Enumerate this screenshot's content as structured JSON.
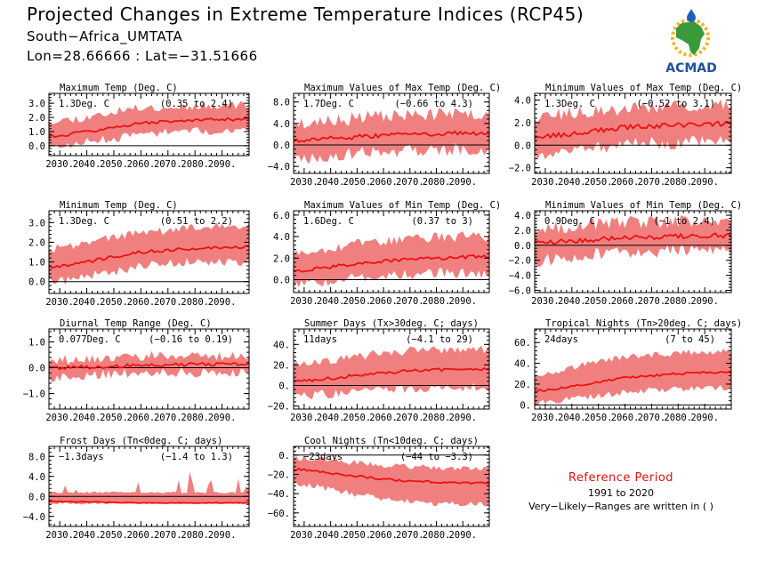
{
  "header": {
    "title": "Projected Changes in Extreme Temperature Indices (RCP45)",
    "subtitle_location": "South−Africa_UMTATA",
    "subtitle_coords": "Lon=28.66666 : Lat=−31.51666"
  },
  "logo": {
    "text": "ACMAD",
    "colors": {
      "africa": "#3a9a3a",
      "rays": "#f3b31a",
      "drop": "#1f63b5",
      "text": "#1f4fa3"
    }
  },
  "reference": {
    "heading": "Reference Period",
    "period": "1991 to 2020",
    "note": "Very−Likely−Ranges are written in ( )"
  },
  "style": {
    "band_color": "#f08080",
    "line_color": "#ee1111",
    "zero_line_color": "#000000"
  },
  "chart_data": [
    {
      "type": "area",
      "title": "Maximum Temp (Deg. C)",
      "mean_label": "1.3Deg. C",
      "range_label": "(0.35 to 2.4)",
      "x": [
        2030,
        2040,
        2050,
        2060,
        2070,
        2080,
        2090
      ],
      "x_tick_labels": [
        "2030.",
        "2040.",
        "2050.",
        "2060.",
        "2070.",
        "2080.",
        "2090."
      ],
      "xlim": [
        2026,
        2100
      ],
      "ylim": [
        -0.7,
        3.7
      ],
      "yticks": [
        0,
        1,
        2,
        3
      ],
      "ytick_labels": [
        "0.0",
        "1.0",
        "2.0",
        "3.0"
      ],
      "median": [
        0.7,
        1.0,
        1.3,
        1.6,
        1.7,
        1.8,
        1.85
      ],
      "lower": [
        -0.1,
        0.3,
        0.5,
        0.8,
        1.0,
        1.0,
        1.1
      ],
      "upper": [
        1.8,
        2.0,
        2.4,
        2.7,
        2.7,
        2.8,
        2.9
      ],
      "seed": 11,
      "noise": 0.6
    },
    {
      "type": "area",
      "title": "Maximum Values of Max Temp (Deg. C)",
      "mean_label": "1.7Deg. C",
      "range_label": "(−0.66 to 4.3)",
      "x": [
        2030,
        2040,
        2050,
        2060,
        2070,
        2080,
        2090
      ],
      "x_tick_labels": [
        "2030.",
        "2040.",
        "2050.",
        "2060.",
        "2070.",
        "2080.",
        "2090."
      ],
      "xlim": [
        2026,
        2100
      ],
      "ylim": [
        -5.3,
        9.6
      ],
      "yticks": [
        -4,
        0,
        4,
        8
      ],
      "ytick_labels": [
        "−4.0",
        "0.0",
        "4.0",
        "8.0"
      ],
      "median": [
        0.8,
        1.2,
        1.5,
        1.8,
        2.0,
        2.1,
        2.2
      ],
      "lower": [
        -2.5,
        -2.0,
        -1.5,
        -1.2,
        -1.0,
        -1.0,
        -0.8
      ],
      "upper": [
        4.0,
        4.5,
        5.0,
        5.5,
        5.5,
        5.7,
        5.8
      ],
      "seed": 23,
      "noise": 2.4
    },
    {
      "type": "area",
      "title": "Minimum Values of Max Temp (Deg. C)",
      "mean_label": "1.3Deg. C",
      "range_label": "(−0.52 to 3.1)",
      "x": [
        2030,
        2040,
        2050,
        2060,
        2070,
        2080,
        2090
      ],
      "x_tick_labels": [
        "2030.",
        "2040.",
        "2050.",
        "2060.",
        "2070.",
        "2080.",
        "2090."
      ],
      "xlim": [
        2026,
        2100
      ],
      "ylim": [
        -2.5,
        4.6
      ],
      "yticks": [
        -2,
        0,
        2,
        4
      ],
      "ytick_labels": [
        "−2.0",
        "0.0",
        "2.0",
        "4.0"
      ],
      "median": [
        0.8,
        1.0,
        1.3,
        1.6,
        1.7,
        1.8,
        1.9
      ],
      "lower": [
        -0.8,
        -0.5,
        -0.2,
        0.0,
        0.2,
        0.2,
        0.3
      ],
      "upper": [
        2.6,
        2.8,
        3.0,
        3.2,
        3.4,
        3.4,
        3.5
      ],
      "seed": 37,
      "noise": 1.2
    },
    {
      "type": "area",
      "title": "Minimum Temp (Deg. C)",
      "mean_label": "1.3Deg. C",
      "range_label": "(0.51 to 2.2)",
      "x": [
        2030,
        2040,
        2050,
        2060,
        2070,
        2080,
        2090
      ],
      "x_tick_labels": [
        "2030.",
        "2040.",
        "2050.",
        "2060.",
        "2070.",
        "2080.",
        "2090."
      ],
      "xlim": [
        2026,
        2100
      ],
      "ylim": [
        -0.6,
        3.6
      ],
      "yticks": [
        0,
        1,
        2,
        3
      ],
      "ytick_labels": [
        "0.0",
        "1.0",
        "2.0",
        "3.0"
      ],
      "median": [
        0.75,
        1.0,
        1.25,
        1.5,
        1.6,
        1.7,
        1.75
      ],
      "lower": [
        0.0,
        0.3,
        0.5,
        0.8,
        0.9,
        1.0,
        1.0
      ],
      "upper": [
        1.7,
        2.0,
        2.3,
        2.5,
        2.6,
        2.7,
        2.8
      ],
      "seed": 41,
      "noise": 0.45
    },
    {
      "type": "area",
      "title": "Maximum Values of Min Temp (Deg. C)",
      "mean_label": "1.6Deg. C",
      "range_label": "(0.37 to 3)",
      "x": [
        2030,
        2040,
        2050,
        2060,
        2070,
        2080,
        2090
      ],
      "x_tick_labels": [
        "2030.",
        "2040.",
        "2050.",
        "2060.",
        "2070.",
        "2080.",
        "2090."
      ],
      "xlim": [
        2026,
        2100
      ],
      "ylim": [
        -1.2,
        6.4
      ],
      "yticks": [
        0,
        2,
        4,
        6
      ],
      "ytick_labels": [
        "0.0",
        "2.0",
        "4.0",
        "6.0"
      ],
      "median": [
        0.9,
        1.2,
        1.5,
        1.7,
        1.9,
        2.0,
        2.1
      ],
      "lower": [
        -0.4,
        -0.1,
        0.2,
        0.4,
        0.5,
        0.6,
        0.6
      ],
      "upper": [
        2.6,
        3.0,
        3.3,
        3.6,
        3.8,
        3.9,
        4.0
      ],
      "seed": 53,
      "noise": 1.0
    },
    {
      "type": "area",
      "title": "Minimum Values of Min Temp (Deg. C)",
      "mean_label": "0.9Deg. C",
      "range_label": "(−1 to 2.4)",
      "x": [
        2030,
        2040,
        2050,
        2060,
        2070,
        2080,
        2090
      ],
      "x_tick_labels": [
        "2030.",
        "2040.",
        "2050.",
        "2060.",
        "2070.",
        "2080.",
        "2090."
      ],
      "xlim": [
        2026,
        2100
      ],
      "ylim": [
        -6.3,
        4.6
      ],
      "yticks": [
        -6,
        -4,
        -2,
        0,
        2,
        4
      ],
      "ytick_labels": [
        "−6.0",
        "−4.0",
        "−2.0",
        "0.0",
        "2.0",
        "4.0"
      ],
      "median": [
        0.4,
        0.6,
        0.8,
        1.0,
        1.1,
        1.2,
        1.3
      ],
      "lower": [
        -2.0,
        -1.6,
        -1.2,
        -1.0,
        -0.8,
        -0.8,
        -0.6
      ],
      "upper": [
        2.4,
        2.6,
        2.8,
        3.0,
        3.1,
        3.2,
        3.2
      ],
      "seed": 67,
      "noise": 1.8
    },
    {
      "type": "area",
      "title": "Diurnal Temp Range (Deg. C)",
      "mean_label": "0.077Deg. C",
      "range_label": "(−0.16 to 0.19)",
      "x": [
        2030,
        2040,
        2050,
        2060,
        2070,
        2080,
        2090
      ],
      "x_tick_labels": [
        "2030.",
        "2040.",
        "2050.",
        "2060.",
        "2070.",
        "2080.",
        "2090."
      ],
      "xlim": [
        2026,
        2100
      ],
      "ylim": [
        -1.6,
        1.5
      ],
      "yticks": [
        -1,
        0,
        1
      ],
      "ytick_labels": [
        "−1.0",
        "0.0",
        "1.0"
      ],
      "median": [
        0.0,
        0.02,
        0.05,
        0.1,
        0.12,
        0.12,
        0.15
      ],
      "lower": [
        -0.35,
        -0.3,
        -0.25,
        -0.2,
        -0.18,
        -0.18,
        -0.15
      ],
      "upper": [
        0.3,
        0.35,
        0.4,
        0.45,
        0.45,
        0.45,
        0.45
      ],
      "seed": 79,
      "noise": 0.4
    },
    {
      "type": "area",
      "title": "Summer Days (Tx>30deg. C; days)",
      "mean_label": "11days",
      "range_label": "(−4.1 to 29)",
      "x": [
        2030,
        2040,
        2050,
        2060,
        2070,
        2080,
        2090
      ],
      "x_tick_labels": [
        "2030.",
        "2040.",
        "2050.",
        "2060.",
        "2070.",
        "2080.",
        "2090."
      ],
      "xlim": [
        2026,
        2100
      ],
      "ylim": [
        -23,
        55
      ],
      "yticks": [
        -20,
        0,
        20,
        40
      ],
      "ytick_labels": [
        "−20.",
        "0.",
        "20.",
        "40."
      ],
      "median": [
        4,
        7,
        10,
        12,
        14,
        15,
        16
      ],
      "lower": [
        -10,
        -8,
        -6,
        -4,
        -3,
        -2,
        -2
      ],
      "upper": [
        22,
        25,
        28,
        32,
        34,
        35,
        36
      ],
      "seed": 83,
      "noise": 9
    },
    {
      "type": "area",
      "title": "Tropical Nights (Tn>20deg. C; days)",
      "mean_label": "24days",
      "range_label": "(7 to 45)",
      "x": [
        2030,
        2040,
        2050,
        2060,
        2070,
        2080,
        2090
      ],
      "x_tick_labels": [
        "2030.",
        "2040.",
        "2050.",
        "2060.",
        "2070.",
        "2080.",
        "2090."
      ],
      "xlim": [
        2026,
        2100
      ],
      "ylim": [
        -4,
        73
      ],
      "yticks": [
        0,
        20,
        40,
        60
      ],
      "ytick_labels": [
        "0.",
        "20.",
        "40.",
        "60."
      ],
      "median": [
        14,
        18,
        22,
        26,
        28,
        30,
        31
      ],
      "lower": [
        3,
        6,
        9,
        12,
        14,
        15,
        16
      ],
      "upper": [
        30,
        36,
        42,
        46,
        48,
        50,
        51
      ],
      "seed": 97,
      "noise": 6
    },
    {
      "type": "area",
      "title": "Frost Days (Tn<0deg. C; days)",
      "mean_label": "−1.3days",
      "range_label": "(−1.4 to 1.3)",
      "x": [
        2030,
        2040,
        2050,
        2060,
        2070,
        2080,
        2090
      ],
      "x_tick_labels": [
        "2030.",
        "2040.",
        "2050.",
        "2060.",
        "2070.",
        "2080.",
        "2090."
      ],
      "xlim": [
        2026,
        2100
      ],
      "ylim": [
        -6,
        10
      ],
      "yticks": [
        -4,
        0,
        4,
        8
      ],
      "ytick_labels": [
        "−4.0",
        "0.0",
        "4.0",
        "8.0"
      ],
      "median": [
        -1.0,
        -1.1,
        -1.2,
        -1.3,
        -1.3,
        -1.3,
        -1.3
      ],
      "lower": [
        -1.4,
        -1.4,
        -1.4,
        -1.4,
        -1.4,
        -1.4,
        -1.4
      ],
      "upper": [
        0.8,
        0.8,
        0.8,
        0.8,
        0.8,
        0.8,
        0.8
      ],
      "seed": 101,
      "noise": 0.4,
      "spikes": true
    },
    {
      "type": "area",
      "title": "Cool Nights (Tn<10deg. C; days)",
      "mean_label": "−23days",
      "range_label": "(−44 to −3.3)",
      "x": [
        2030,
        2040,
        2050,
        2060,
        2070,
        2080,
        2090
      ],
      "x_tick_labels": [
        "2030.",
        "2040.",
        "2050.",
        "2060.",
        "2070.",
        "2080.",
        "2090."
      ],
      "xlim": [
        2026,
        2100
      ],
      "ylim": [
        -74,
        9
      ],
      "yticks": [
        -60,
        -40,
        -20,
        0
      ],
      "ytick_labels": [
        "−60.",
        "−40.",
        "−20.",
        "0."
      ],
      "median": [
        -15,
        -19,
        -22,
        -25,
        -27,
        -28,
        -29
      ],
      "lower": [
        -30,
        -36,
        -41,
        -45,
        -48,
        -50,
        -51
      ],
      "upper": [
        -3,
        -5,
        -8,
        -10,
        -12,
        -13,
        -14
      ],
      "seed": 113,
      "noise": 6
    }
  ]
}
